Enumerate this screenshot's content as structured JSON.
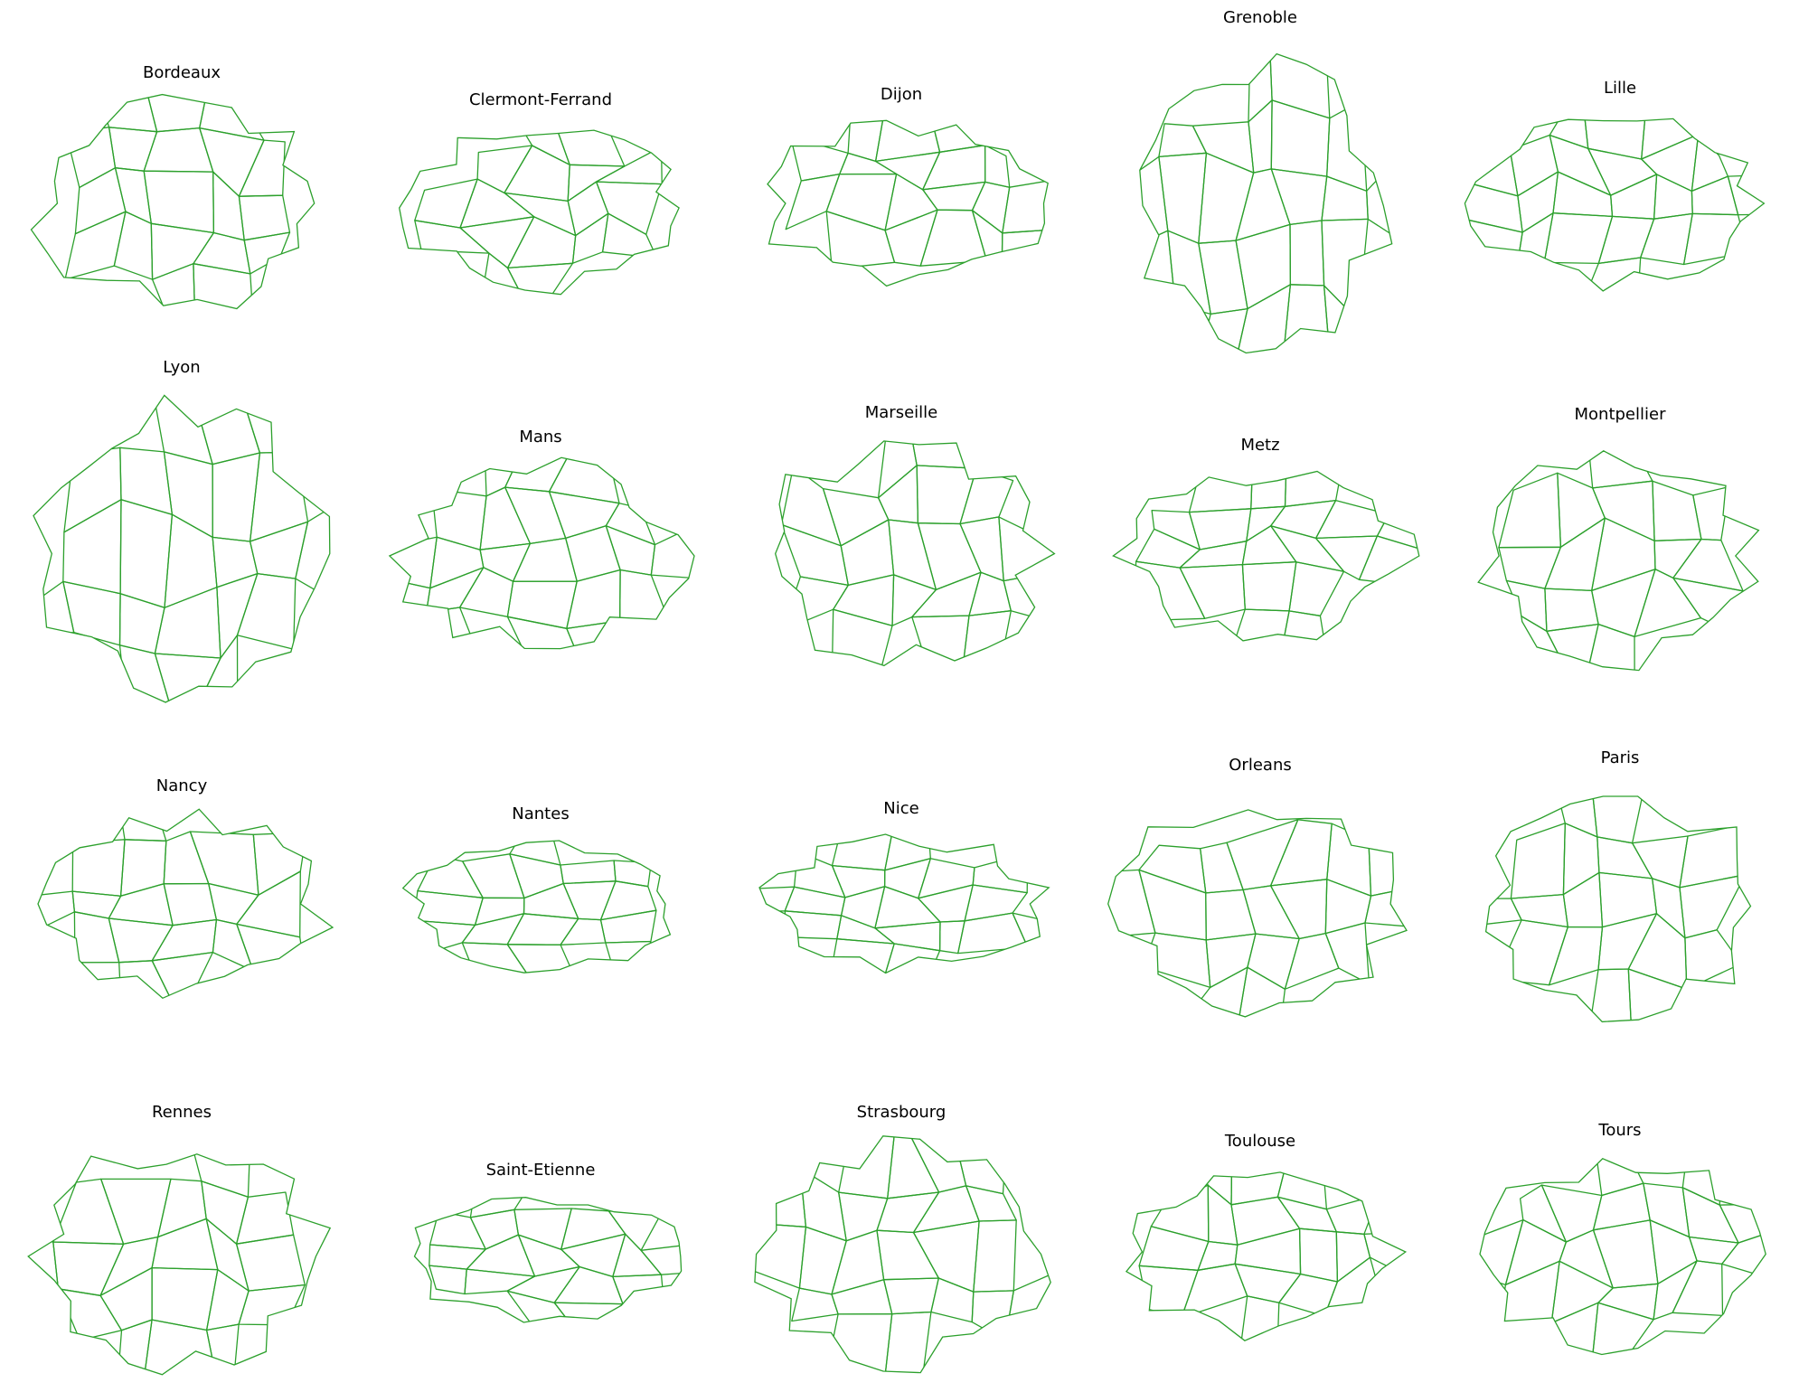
{
  "figure": {
    "line_color": "#2ca02c",
    "background": "#ffffff",
    "panels": [
      {
        "city": "Bordeaux"
      },
      {
        "city": "Clermont-Ferrand"
      },
      {
        "city": "Dijon"
      },
      {
        "city": "Grenoble"
      },
      {
        "city": "Lille"
      },
      {
        "city": "Lyon"
      },
      {
        "city": "Mans"
      },
      {
        "city": "Marseille"
      },
      {
        "city": "Metz"
      },
      {
        "city": "Montpellier"
      },
      {
        "city": "Nancy"
      },
      {
        "city": "Nantes"
      },
      {
        "city": "Nice"
      },
      {
        "city": "Orleans"
      },
      {
        "city": "Paris"
      },
      {
        "city": "Rennes"
      },
      {
        "city": "Saint-Etienne"
      },
      {
        "city": "Strasbourg"
      },
      {
        "city": "Toulouse"
      },
      {
        "city": "Tours"
      }
    ]
  }
}
